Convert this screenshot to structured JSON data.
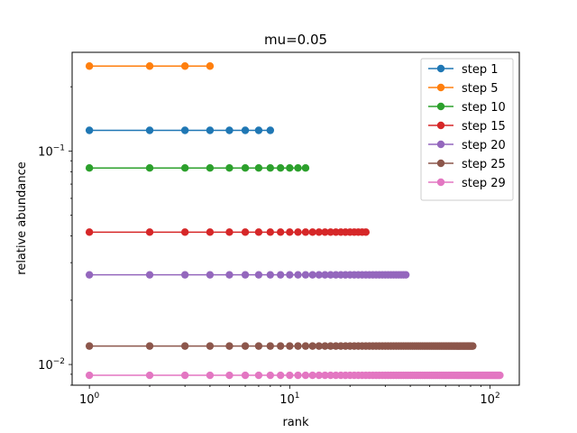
{
  "chart_data": {
    "type": "line",
    "title": "mu=0.05",
    "xlabel": "rank",
    "ylabel": "relative abundance",
    "xscale": "log",
    "yscale": "log",
    "xlim": [
      0.82,
      140
    ],
    "ylim": [
      0.008,
      0.29
    ],
    "x_ticks": [
      {
        "value": 1,
        "base": "10",
        "exp": "0"
      },
      {
        "value": 10,
        "base": "10",
        "exp": "1"
      },
      {
        "value": 100,
        "base": "10",
        "exp": "2"
      }
    ],
    "y_ticks": [
      {
        "value": 0.01,
        "base": "10",
        "exp": "−2"
      },
      {
        "value": 0.1,
        "base": "10",
        "exp": "−1"
      }
    ],
    "grid": false,
    "legend_position": "top-right",
    "series": [
      {
        "name": "step 1",
        "color": "#1f77b4",
        "n_ranks": 8,
        "value": 0.125
      },
      {
        "name": "step 5",
        "color": "#ff7f0e",
        "n_ranks": 4,
        "value": 0.25
      },
      {
        "name": "step 10",
        "color": "#2ca02c",
        "n_ranks": 12,
        "value": 0.0833
      },
      {
        "name": "step 15",
        "color": "#d62728",
        "n_ranks": 24,
        "value": 0.0417
      },
      {
        "name": "step 20",
        "color": "#9467bd",
        "n_ranks": 38,
        "value": 0.0263
      },
      {
        "name": "step 25",
        "color": "#8c564b",
        "n_ranks": 82,
        "value": 0.0122
      },
      {
        "name": "step 29",
        "color": "#e377c2",
        "n_ranks": 112,
        "value": 0.0089
      }
    ]
  }
}
